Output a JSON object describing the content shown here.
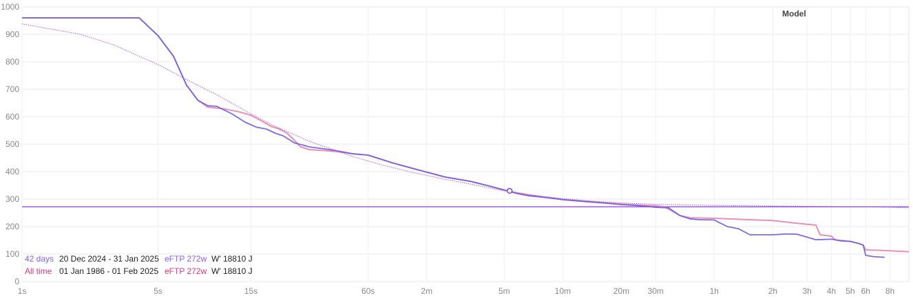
{
  "chart_data": {
    "type": "line",
    "x_scale": "log",
    "y_range": [
      0,
      1000
    ],
    "y_ticks": [
      0,
      100,
      200,
      300,
      400,
      500,
      600,
      700,
      800,
      900,
      1000
    ],
    "x_ticks": [
      {
        "s": 1,
        "label": "1s"
      },
      {
        "s": 5,
        "label": "5s"
      },
      {
        "s": 15,
        "label": "15s"
      },
      {
        "s": 60,
        "label": "60s"
      },
      {
        "s": 120,
        "label": "2m"
      },
      {
        "s": 300,
        "label": "5m"
      },
      {
        "s": 600,
        "label": "10m"
      },
      {
        "s": 1200,
        "label": "20m"
      },
      {
        "s": 1800,
        "label": "30m"
      },
      {
        "s": 3600,
        "label": "1h"
      },
      {
        "s": 7200,
        "label": "2h"
      },
      {
        "s": 10800,
        "label": "3h"
      },
      {
        "s": 14400,
        "label": "4h"
      },
      {
        "s": 18000,
        "label": "5h"
      },
      {
        "s": 21600,
        "label": "6h"
      },
      {
        "s": 28800,
        "label": "8h"
      }
    ],
    "x_max_s": 36000,
    "grid": true,
    "legend_title": "Model",
    "ftp_line": 272,
    "marker": {
      "s": 320,
      "w": 330
    },
    "series": [
      {
        "key": "alltime",
        "color": "#e87aa8",
        "points": [
          [
            1,
            960
          ],
          [
            4,
            960
          ],
          [
            5,
            895
          ],
          [
            6,
            820
          ],
          [
            7,
            715
          ],
          [
            8,
            660
          ],
          [
            9,
            635
          ],
          [
            11,
            628
          ],
          [
            13,
            618
          ],
          [
            15,
            605
          ],
          [
            17,
            585
          ],
          [
            19,
            565
          ],
          [
            21,
            555
          ],
          [
            23,
            540
          ],
          [
            25,
            515
          ],
          [
            27,
            490
          ],
          [
            30,
            480
          ],
          [
            40,
            474
          ],
          [
            50,
            465
          ],
          [
            60,
            460
          ],
          [
            80,
            432
          ],
          [
            100,
            413
          ],
          [
            120,
            398
          ],
          [
            150,
            380
          ],
          [
            200,
            365
          ],
          [
            250,
            348
          ],
          [
            300,
            333
          ],
          [
            350,
            323
          ],
          [
            400,
            316
          ],
          [
            500,
            306
          ],
          [
            600,
            298
          ],
          [
            800,
            292
          ],
          [
            1000,
            286
          ],
          [
            1200,
            282
          ],
          [
            1500,
            278
          ],
          [
            1800,
            276
          ],
          [
            2000,
            272
          ],
          [
            2400,
            240
          ],
          [
            2700,
            232
          ],
          [
            3600,
            230
          ],
          [
            5000,
            226
          ],
          [
            7200,
            222
          ],
          [
            9000,
            214
          ],
          [
            12000,
            205
          ],
          [
            12600,
            170
          ],
          [
            14400,
            165
          ],
          [
            15000,
            152
          ],
          [
            18000,
            146
          ],
          [
            20000,
            138
          ],
          [
            21000,
            132
          ],
          [
            21600,
            115
          ],
          [
            28800,
            112
          ],
          [
            36000,
            108
          ]
        ]
      },
      {
        "key": "recent",
        "color": "#6b5ce0",
        "points": [
          [
            1,
            960
          ],
          [
            4,
            960
          ],
          [
            5,
            895
          ],
          [
            6,
            820
          ],
          [
            7,
            715
          ],
          [
            8,
            660
          ],
          [
            9,
            640
          ],
          [
            10,
            638
          ],
          [
            12,
            610
          ],
          [
            14,
            580
          ],
          [
            16,
            562
          ],
          [
            18,
            555
          ],
          [
            20,
            540
          ],
          [
            22,
            530
          ],
          [
            25,
            505
          ],
          [
            30,
            490
          ],
          [
            40,
            478
          ],
          [
            50,
            465
          ],
          [
            60,
            460
          ],
          [
            80,
            432
          ],
          [
            100,
            413
          ],
          [
            120,
            398
          ],
          [
            150,
            380
          ],
          [
            200,
            365
          ],
          [
            250,
            348
          ],
          [
            300,
            333
          ],
          [
            350,
            320
          ],
          [
            400,
            312
          ],
          [
            500,
            305
          ],
          [
            600,
            298
          ],
          [
            800,
            290
          ],
          [
            1000,
            285
          ],
          [
            1200,
            280
          ],
          [
            1500,
            276
          ],
          [
            1800,
            270
          ],
          [
            2100,
            268
          ],
          [
            2400,
            240
          ],
          [
            2700,
            228
          ],
          [
            3000,
            225
          ],
          [
            3600,
            224
          ],
          [
            4200,
            200
          ],
          [
            4800,
            192
          ],
          [
            5500,
            170
          ],
          [
            7200,
            170
          ],
          [
            8400,
            173
          ],
          [
            9600,
            172
          ],
          [
            12000,
            152
          ],
          [
            14400,
            154
          ],
          [
            16000,
            148
          ],
          [
            18000,
            146
          ],
          [
            20000,
            138
          ],
          [
            21000,
            132
          ],
          [
            21600,
            95
          ],
          [
            24000,
            90
          ],
          [
            27000,
            88
          ]
        ]
      },
      {
        "key": "model",
        "color": "#a855d8",
        "points": [
          [
            1,
            938
          ],
          [
            2,
            900
          ],
          [
            3,
            860
          ],
          [
            4,
            820
          ],
          [
            5,
            790
          ],
          [
            7,
            735
          ],
          [
            10,
            680
          ],
          [
            15,
            610
          ],
          [
            20,
            565
          ],
          [
            30,
            510
          ],
          [
            50,
            455
          ],
          [
            70,
            425
          ],
          [
            100,
            398
          ],
          [
            150,
            372
          ],
          [
            200,
            355
          ],
          [
            300,
            330
          ],
          [
            400,
            315
          ],
          [
            600,
            302
          ],
          [
            800,
            294
          ],
          [
            1200,
            286
          ],
          [
            1800,
            281
          ],
          [
            3600,
            277
          ],
          [
            7200,
            275
          ],
          [
            14400,
            273
          ],
          [
            20000,
            272
          ],
          [
            28800,
            270
          ],
          [
            36000,
            268
          ]
        ]
      }
    ],
    "info_rows": [
      {
        "period": "42 days",
        "dates": "20 Dec 2024 - 31 Jan 2025",
        "eftp": "eFTP 272w",
        "wprime": "W' 18810 J",
        "period_color": "#7b61ff",
        "eftp_color": "#8b5cf6"
      },
      {
        "period": "All time",
        "dates": "01 Jan 1986 - 01 Feb 2025",
        "eftp": "eFTP 272w",
        "wprime": "W' 18810 J",
        "period_color": "#e0357a",
        "eftp_color": "#e0357a"
      }
    ]
  }
}
